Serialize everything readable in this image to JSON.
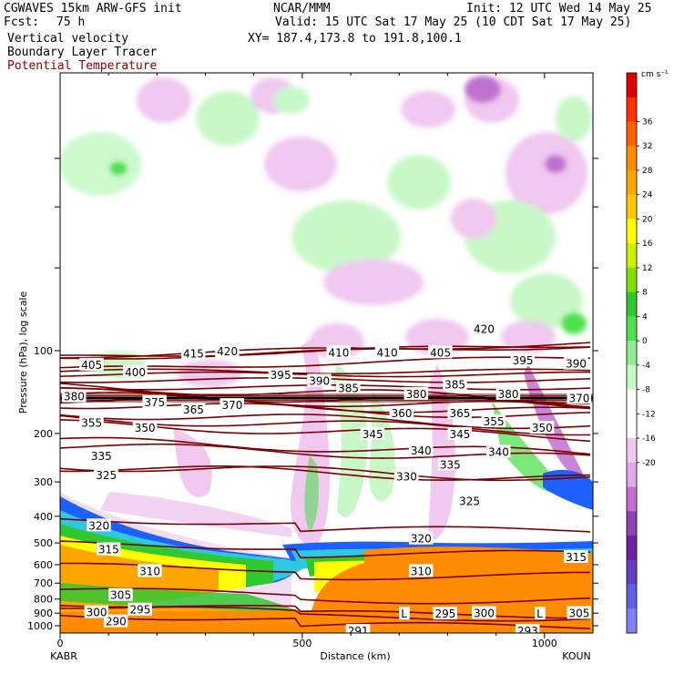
{
  "header": {
    "model": "CGWAVES 15km ARW-GFS init",
    "fcst_label": "Fcst:",
    "fcst_value": "75 h",
    "org": "NCAR/MMM",
    "init": "Init: 12 UTC Wed 14 May 25",
    "valid": "Valid: 15 UTC Sat 17 May 25 (10 CDT Sat 17 May 25)",
    "xy": "XY= 187.4,173.8 to 191.8,100.1",
    "field1": "Vertical velocity",
    "field2": "Boundary Layer Tracer",
    "field3": "Potential Temperature"
  },
  "colors": {
    "theta": "#7a0000",
    "field3_text": "#8b0000",
    "tracer_fill": "#ffffff"
  },
  "chart_data": {
    "type": "heatmap",
    "xlabel": "Distance (km)",
    "ylabel": "Pressure (hPa), log scale",
    "x_ticks": [
      "0",
      "500",
      "1000"
    ],
    "x_tick_values": [
      0,
      500,
      1000
    ],
    "xlim": [
      0,
      1100
    ],
    "x_endpoints": {
      "left": "KABR",
      "right": "KOUN"
    },
    "y_ticks": [
      "100",
      "200",
      "300",
      "400",
      "500",
      "600",
      "700",
      "800",
      "900",
      "1000"
    ],
    "y_tick_values": [
      100,
      200,
      300,
      400,
      500,
      600,
      700,
      800,
      900,
      1000
    ],
    "y_scale": "log",
    "colorbar": {
      "unit": "cm s⁻¹",
      "tick_labels": [
        "36",
        "32",
        "28",
        "24",
        "20",
        "16",
        "12",
        "8",
        "4",
        "0",
        "-4",
        "-8",
        "-12",
        "-16",
        "-20"
      ],
      "colors": [
        "#e00000",
        "#ff3000",
        "#ff6000",
        "#ff8c00",
        "#ffa500",
        "#ffc800",
        "#ffff00",
        "#c8f000",
        "#80e000",
        "#30c830",
        "#50e050",
        "#90ee90",
        "#c8f8c8",
        "#ffffff",
        "#ffffff",
        "#f0c8f0",
        "#e0a8e8",
        "#c070d0",
        "#9040b0",
        "#7020a0",
        "#6040c0",
        "#6060e0",
        "#8080ff"
      ]
    },
    "theta_contours": [
      {
        "level": "290",
        "x": 90,
        "p": 960
      },
      {
        "level": "295",
        "x": 140,
        "p": 870
      },
      {
        "level": "300",
        "x": 50,
        "p": 890
      },
      {
        "level": "305",
        "x": 100,
        "p": 770
      },
      {
        "level": "310",
        "x": 160,
        "p": 630
      },
      {
        "level": "315",
        "x": 75,
        "p": 525
      },
      {
        "level": "320",
        "x": 55,
        "p": 430
      },
      {
        "level": "325",
        "x": 70,
        "p": 282
      },
      {
        "level": "330",
        "x": 690,
        "p": 285
      },
      {
        "level": "335",
        "x": 60,
        "p": 240
      },
      {
        "level": "340",
        "x": 720,
        "p": 230
      },
      {
        "level": "345",
        "x": 620,
        "p": 200
      },
      {
        "level": "350",
        "x": 150,
        "p": 190
      },
      {
        "level": "355",
        "x": 40,
        "p": 182
      },
      {
        "level": "360",
        "x": 680,
        "p": 168
      },
      {
        "level": "365",
        "x": 250,
        "p": 163
      },
      {
        "level": "370",
        "x": 330,
        "p": 157
      },
      {
        "level": "375",
        "x": 170,
        "p": 153
      },
      {
        "level": "380",
        "x": 0,
        "p": 146
      },
      {
        "level": "385",
        "x": 570,
        "p": 136
      },
      {
        "level": "390",
        "x": 510,
        "p": 128
      },
      {
        "level": "395",
        "x": 430,
        "p": 122
      },
      {
        "level": "400",
        "x": 130,
        "p": 119
      },
      {
        "level": "405",
        "x": 40,
        "p": 112
      },
      {
        "level": "410",
        "x": 550,
        "p": 101
      },
      {
        "level": "415",
        "x": 250,
        "p": 102
      },
      {
        "level": "420",
        "x": 320,
        "p": 100
      }
    ],
    "extra_labels": [
      {
        "text": "410",
        "x": 650,
        "p": 101
      },
      {
        "text": "405",
        "x": 760,
        "p": 101
      },
      {
        "text": "420",
        "x": 850,
        "p": 83
      },
      {
        "text": "395",
        "x": 930,
        "p": 108
      },
      {
        "text": "390",
        "x": 1040,
        "p": 111
      },
      {
        "text": "385",
        "x": 790,
        "p": 132
      },
      {
        "text": "380",
        "x": 710,
        "p": 143
      },
      {
        "text": "380",
        "x": 900,
        "p": 143
      },
      {
        "text": "370",
        "x": 1050,
        "p": 148
      },
      {
        "text": "365",
        "x": 800,
        "p": 168
      },
      {
        "text": "355",
        "x": 870,
        "p": 180
      },
      {
        "text": "350",
        "x": 970,
        "p": 190
      },
      {
        "text": "345",
        "x": 800,
        "p": 200
      },
      {
        "text": "340",
        "x": 880,
        "p": 232
      },
      {
        "text": "335",
        "x": 780,
        "p": 258
      },
      {
        "text": "325",
        "x": 820,
        "p": 350
      },
      {
        "text": "320",
        "x": 720,
        "p": 480
      },
      {
        "text": "310",
        "x": 720,
        "p": 630
      },
      {
        "text": "315",
        "x": 1040,
        "p": 560
      },
      {
        "text": "295",
        "x": 770,
        "p": 900
      },
      {
        "text": "300",
        "x": 850,
        "p": 895
      },
      {
        "text": "305",
        "x": 1050,
        "p": 895
      },
      {
        "text": "291",
        "x": 590,
        "p": 1040
      },
      {
        "text": "293",
        "x": 940,
        "p": 1040
      },
      {
        "text": "L",
        "x": 700,
        "p": 900
      },
      {
        "text": "L",
        "x": 980,
        "p": 900
      }
    ]
  }
}
